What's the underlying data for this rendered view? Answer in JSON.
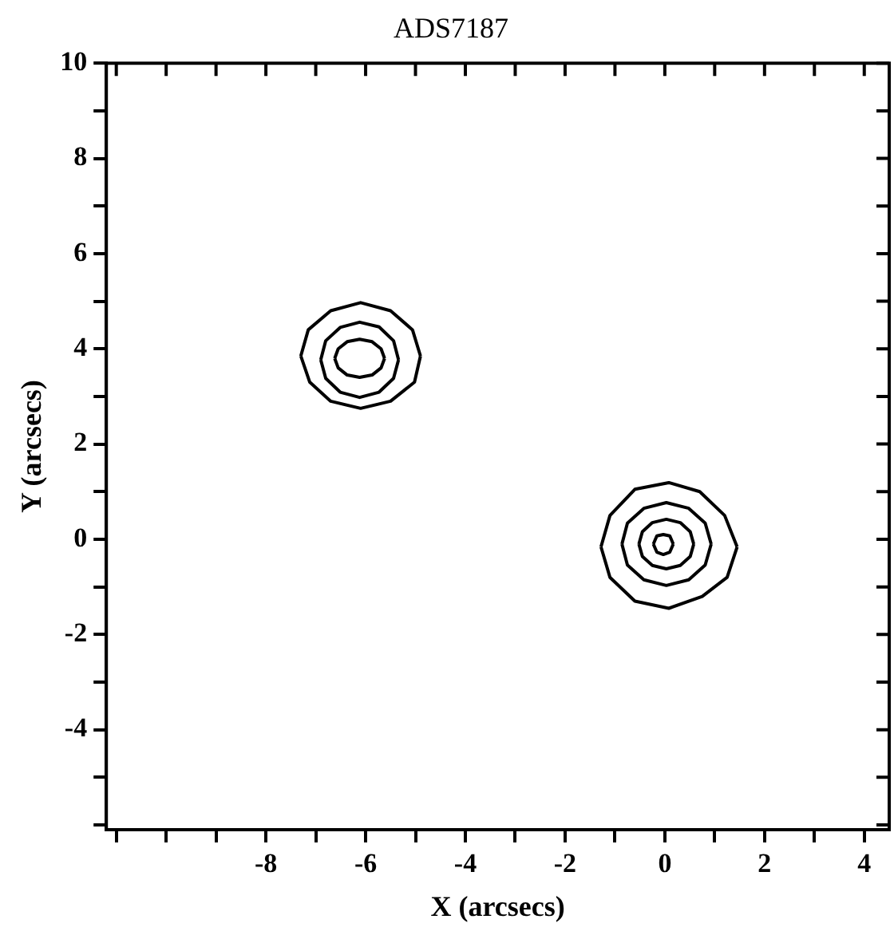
{
  "chart_data": {
    "type": "line",
    "title": "ADS7187",
    "xlabel": "X (arcsecs)",
    "ylabel": "Y (arcsecs)",
    "xlim": [
      -11.2,
      4.5
    ],
    "xticks": [
      {
        "value": -11,
        "label": null
      },
      {
        "value": -10,
        "label": null
      },
      {
        "value": -9,
        "label": null
      },
      -8,
      {
        "value": -7,
        "label": null
      },
      -6,
      {
        "value": -5,
        "label": null
      },
      -4,
      {
        "value": -3,
        "label": null
      },
      -2,
      {
        "value": -1,
        "label": null
      },
      0,
      {
        "value": 1,
        "label": null
      },
      2,
      {
        "value": 3,
        "label": null
      },
      4
    ],
    "ylim": [
      -6.1,
      10
    ],
    "yticks": [
      {
        "value": -6,
        "label": null
      },
      {
        "value": -5,
        "label": null
      },
      -4,
      {
        "value": -3,
        "label": null
      },
      -2,
      {
        "value": -1,
        "label": null
      },
      0,
      {
        "value": 1,
        "label": null
      },
      2,
      {
        "value": 3,
        "label": null
      },
      4,
      {
        "value": 5,
        "label": null
      },
      6,
      {
        "value": 7,
        "label": null
      },
      8,
      {
        "value": 9,
        "label": null
      },
      10
    ],
    "grid": false,
    "legend": false,
    "marker": "none",
    "line_style": "solid",
    "series": [
      {
        "color": "#000000",
        "x": [
          -7.3,
          -7.15,
          -6.7,
          -6.1,
          -5.5,
          -5.06,
          -4.9
        ],
        "values": [
          3.85,
          4.4,
          4.8,
          4.97,
          4.8,
          4.4,
          3.85
        ]
      },
      {
        "color": "#000000",
        "x": [
          -7.3,
          -7.12,
          -6.7,
          -6.1,
          -5.5,
          -5.02,
          -4.9
        ],
        "values": [
          3.85,
          3.3,
          2.9,
          2.75,
          2.9,
          3.3,
          3.85
        ]
      },
      {
        "color": "#000000",
        "x": [
          -6.9,
          -6.8,
          -6.51,
          -6.12,
          -5.73,
          -5.44,
          -5.34
        ],
        "values": [
          3.77,
          4.17,
          4.45,
          4.56,
          4.46,
          4.17,
          3.77
        ]
      },
      {
        "color": "#000000",
        "x": [
          -6.9,
          -6.8,
          -6.51,
          -6.12,
          -5.73,
          -5.44,
          -5.34
        ],
        "values": [
          3.77,
          3.38,
          3.09,
          2.98,
          3.09,
          3.38,
          3.77
        ]
      },
      {
        "color": "#000000",
        "x": [
          -6.62,
          -6.55,
          -6.37,
          -6.12,
          -5.87,
          -5.69,
          -5.62
        ],
        "values": [
          3.8,
          4.0,
          4.15,
          4.2,
          4.15,
          4.0,
          3.8
        ]
      },
      {
        "color": "#000000",
        "x": [
          -6.62,
          -6.55,
          -6.37,
          -6.12,
          -5.87,
          -5.69,
          -5.62
        ],
        "values": [
          3.8,
          3.6,
          3.45,
          3.4,
          3.45,
          3.6,
          3.8
        ]
      },
      {
        "color": "#000000",
        "x": [
          -1.28,
          -1.1,
          -0.6,
          0.08,
          0.7,
          1.2,
          1.45
        ],
        "values": [
          -0.16,
          0.5,
          1.05,
          1.19,
          1.0,
          0.5,
          -0.16
        ]
      },
      {
        "color": "#000000",
        "x": [
          -1.28,
          -1.1,
          -0.6,
          0.08,
          0.75,
          1.25,
          1.45
        ],
        "values": [
          -0.16,
          -0.8,
          -1.3,
          -1.45,
          -1.2,
          -0.8,
          -0.16
        ]
      },
      {
        "color": "#000000",
        "x": [
          -0.86,
          -0.75,
          -0.42,
          0.03,
          0.48,
          0.81,
          0.93
        ],
        "values": [
          -0.1,
          0.34,
          0.65,
          0.77,
          0.65,
          0.34,
          -0.1
        ]
      },
      {
        "color": "#000000",
        "x": [
          -0.86,
          -0.75,
          -0.42,
          0.03,
          0.48,
          0.81,
          0.93
        ],
        "values": [
          -0.1,
          -0.54,
          -0.85,
          -0.97,
          -0.85,
          -0.54,
          -0.1
        ]
      },
      {
        "color": "#000000",
        "x": [
          -0.52,
          -0.45,
          -0.25,
          0.03,
          0.31,
          0.51,
          0.58
        ],
        "values": [
          -0.1,
          0.16,
          0.35,
          0.42,
          0.35,
          0.16,
          -0.1
        ]
      },
      {
        "color": "#000000",
        "x": [
          -0.52,
          -0.45,
          -0.25,
          0.03,
          0.31,
          0.51,
          0.58
        ],
        "values": [
          -0.1,
          -0.36,
          -0.55,
          -0.62,
          -0.55,
          -0.36,
          -0.1
        ]
      },
      {
        "color": "#000000",
        "x": [
          -0.23,
          -0.16,
          -0.03,
          0.1,
          0.17
        ],
        "values": [
          -0.1,
          0.07,
          0.1,
          0.07,
          -0.1
        ]
      },
      {
        "color": "#000000",
        "x": [
          -0.23,
          -0.16,
          -0.03,
          0.1,
          0.17
        ],
        "values": [
          -0.1,
          -0.27,
          -0.32,
          -0.27,
          -0.1
        ]
      }
    ]
  }
}
